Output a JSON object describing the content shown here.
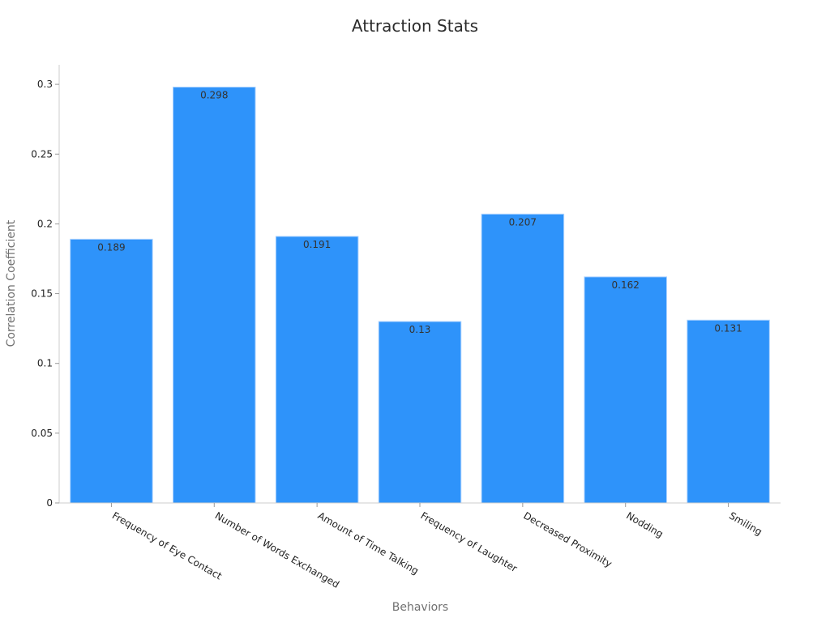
{
  "chart_data": {
    "type": "bar",
    "title": "Attraction Stats",
    "xlabel": "Behaviors",
    "ylabel": "Correlation Coefficient",
    "categories": [
      "Frequency of Eye Contact",
      "Number of Words Exchanged",
      "Amount of Time Talking",
      "Frequency of Laughter",
      "Decreased Proximity",
      "Nodding",
      "Smiling"
    ],
    "values": [
      0.189,
      0.298,
      0.191,
      0.13,
      0.207,
      0.162,
      0.131
    ],
    "value_labels": [
      "0.189",
      "0.298",
      "0.191",
      "0.13",
      "0.207",
      "0.162",
      "0.131"
    ],
    "y_ticks": [
      0,
      0.05,
      0.1,
      0.15,
      0.2,
      0.25,
      0.3
    ],
    "y_tick_labels": [
      "0",
      "0.05",
      "0.1",
      "0.15",
      "0.2",
      "0.25",
      "0.3"
    ],
    "ylim": [
      0,
      0.314
    ],
    "grid": false,
    "bar_color": "#2e93fa"
  }
}
